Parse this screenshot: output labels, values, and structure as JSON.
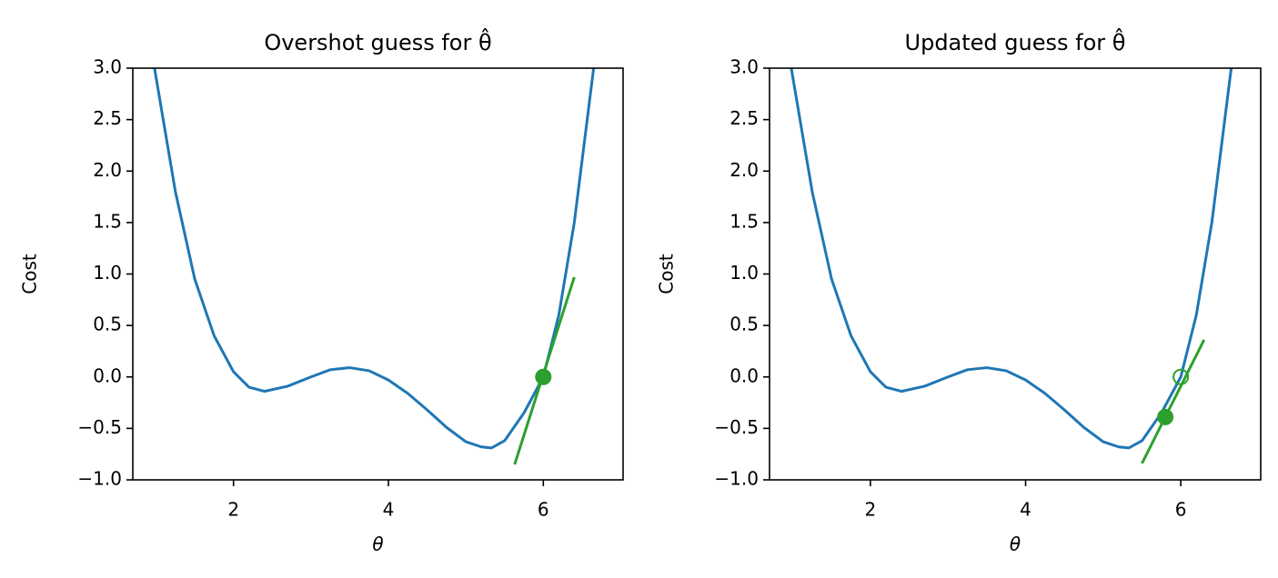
{
  "chart_data": [
    {
      "type": "line",
      "title": "Overshot guess for θ̂",
      "xlabel": "θ",
      "ylabel": "Cost",
      "xlim": [
        0.7,
        7.03
      ],
      "ylim": [
        -1,
        3
      ],
      "xticks": [
        2,
        4,
        6
      ],
      "yticks": [
        {
          "value": -1,
          "label": "−1.0"
        },
        {
          "value": -0.5,
          "label": "−0.5"
        },
        {
          "value": 0,
          "label": "0.0"
        },
        {
          "value": 0.5,
          "label": "0.5"
        },
        {
          "value": 1,
          "label": "1.0"
        },
        {
          "value": 1.5,
          "label": "1.5"
        },
        {
          "value": 2,
          "label": "2.0"
        },
        {
          "value": 2.5,
          "label": "2.5"
        },
        {
          "value": 3,
          "label": "3.0"
        }
      ],
      "series": [
        {
          "color": "#1f77b4",
          "x": [
            0.98,
            1.25,
            1.5,
            1.75,
            2.0,
            2.2,
            2.4,
            2.7,
            3.0,
            3.25,
            3.5,
            3.75,
            4.0,
            4.25,
            4.5,
            4.75,
            5.0,
            5.2,
            5.33,
            5.5,
            5.75,
            6.0,
            6.2,
            6.4,
            6.55,
            6.65
          ],
          "values": [
            3.0,
            1.8,
            0.95,
            0.4,
            0.05,
            -0.1,
            -0.14,
            -0.09,
            0.0,
            0.07,
            0.09,
            0.06,
            -0.03,
            -0.16,
            -0.32,
            -0.49,
            -0.63,
            -0.68,
            -0.69,
            -0.62,
            -0.35,
            0.0,
            0.6,
            1.5,
            2.4,
            3.0
          ]
        },
        {
          "color": "#2ca02c",
          "x": [
            5.63,
            6.4
          ],
          "values": [
            -0.85,
            0.97
          ]
        },
        {
          "color": "#2ca02c",
          "marker": true,
          "x": [
            6.0
          ],
          "values": [
            0.0
          ]
        }
      ]
    },
    {
      "type": "line",
      "title": "Updated guess for θ̂",
      "xlabel": "θ",
      "ylabel": "Cost",
      "xlim": [
        0.7,
        7.03
      ],
      "ylim": [
        -1,
        3
      ],
      "xticks": [
        2,
        4,
        6
      ],
      "yticks": [
        {
          "value": -1,
          "label": "−1.0"
        },
        {
          "value": -0.5,
          "label": "−0.5"
        },
        {
          "value": 0,
          "label": "0.0"
        },
        {
          "value": 0.5,
          "label": "0.5"
        },
        {
          "value": 1,
          "label": "1.0"
        },
        {
          "value": 1.5,
          "label": "1.5"
        },
        {
          "value": 2,
          "label": "2.0"
        },
        {
          "value": 2.5,
          "label": "2.5"
        },
        {
          "value": 3,
          "label": "3.0"
        }
      ],
      "series": [
        {
          "color": "#1f77b4",
          "x": [
            0.98,
            1.25,
            1.5,
            1.75,
            2.0,
            2.2,
            2.4,
            2.7,
            3.0,
            3.25,
            3.5,
            3.75,
            4.0,
            4.25,
            4.5,
            4.75,
            5.0,
            5.2,
            5.33,
            5.5,
            5.75,
            6.0,
            6.2,
            6.4,
            6.55,
            6.65
          ],
          "values": [
            3.0,
            1.8,
            0.95,
            0.4,
            0.05,
            -0.1,
            -0.14,
            -0.09,
            0.0,
            0.07,
            0.09,
            0.06,
            -0.03,
            -0.16,
            -0.32,
            -0.49,
            -0.63,
            -0.68,
            -0.69,
            -0.62,
            -0.35,
            0.0,
            0.6,
            1.5,
            2.4,
            3.0
          ]
        },
        {
          "color": "#2ca02c",
          "x": [
            5.5,
            6.3
          ],
          "values": [
            -0.84,
            0.36
          ]
        },
        {
          "color": "#2ca02c",
          "marker": true,
          "hollow": true,
          "x": [
            6.0
          ],
          "values": [
            0.0
          ]
        },
        {
          "color": "#2ca02c",
          "marker": true,
          "x": [
            5.8
          ],
          "values": [
            -0.39
          ]
        }
      ]
    }
  ]
}
